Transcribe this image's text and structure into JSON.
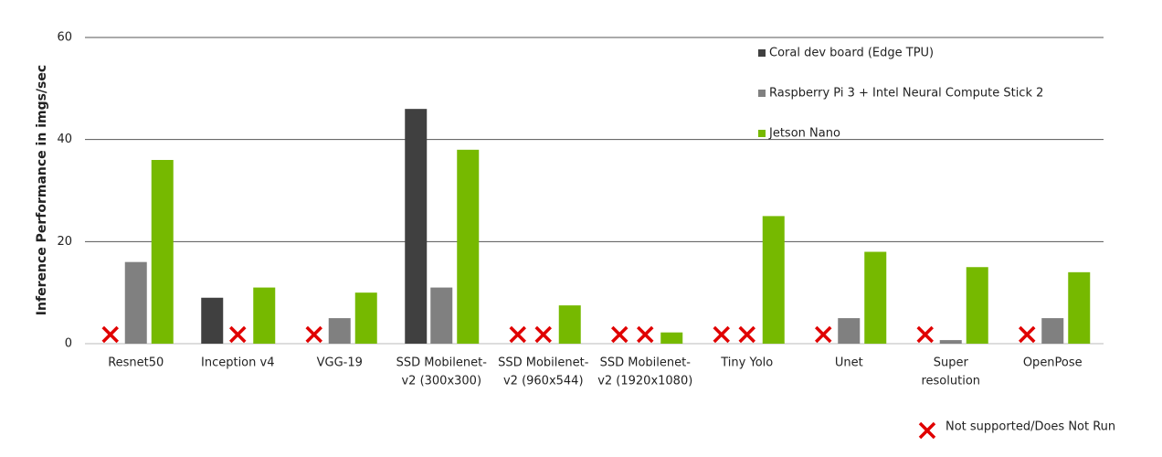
{
  "chart_data": {
    "type": "bar",
    "y_label": "Inference Performance in imgs/sec",
    "categories": [
      "Resnet50",
      "Inception v4",
      "VGG-19",
      [
        "SSD Mobilenet-",
        "v2 (300x300)"
      ],
      [
        "SSD Mobilenet-",
        "v2 (960x544)"
      ],
      [
        "SSD Mobilenet-",
        "v2 (1920x1080)"
      ],
      "Tiny Yolo",
      "Unet",
      [
        "Super",
        "resolution"
      ],
      "OpenPose"
    ],
    "series": [
      {
        "name": "Coral dev board (Edge TPU)",
        "color": "#404040",
        "values": [
          null,
          9,
          null,
          46,
          null,
          null,
          null,
          null,
          null,
          null
        ]
      },
      {
        "name": "Raspberry Pi 3 + Intel Neural Compute Stick 2",
        "color": "#808080",
        "values": [
          16,
          null,
          5,
          11,
          null,
          null,
          null,
          5,
          0.7,
          5
        ]
      },
      {
        "name": "Jetson Nano",
        "color": "#76b900",
        "values": [
          36,
          11,
          10,
          38,
          7.5,
          2.2,
          25,
          18,
          15,
          14
        ]
      }
    ],
    "not_supported_label": "Not supported/Does Not Run",
    "not_supported_color": "#e00000",
    "ylim": [
      0,
      60
    ],
    "yticks": [
      0,
      20,
      40,
      60
    ],
    "grid": true
  }
}
